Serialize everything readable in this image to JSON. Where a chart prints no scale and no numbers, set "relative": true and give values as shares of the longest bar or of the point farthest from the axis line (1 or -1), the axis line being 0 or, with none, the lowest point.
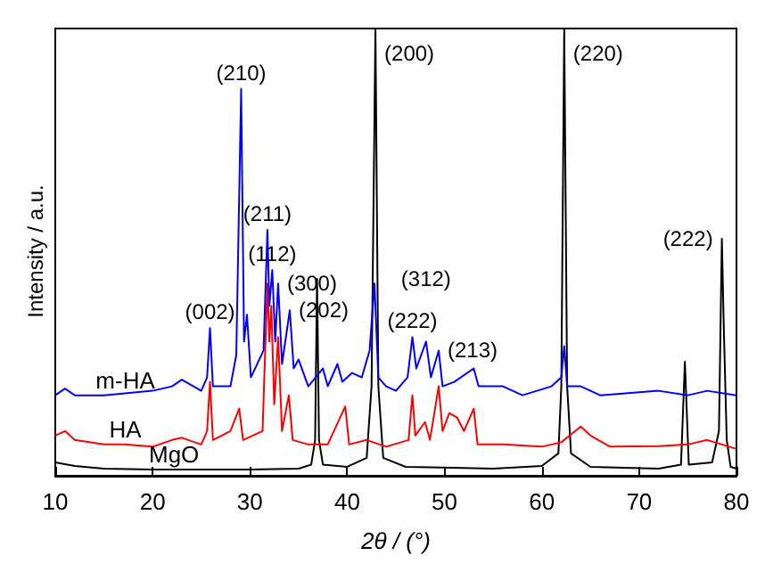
{
  "chart_data": {
    "type": "line",
    "relative": true,
    "xlabel": "2θ / (°)",
    "ylabel": "Intensity / a.u.",
    "xlim": [
      10,
      80
    ],
    "xticks": [
      10,
      20,
      30,
      40,
      50,
      60,
      70,
      80
    ],
    "grid": false,
    "legend": false,
    "marker": "none",
    "line_style": "solid",
    "series": [
      {
        "name": "MgO",
        "color": "#000000",
        "x": [
          10,
          12,
          15,
          20,
          30,
          35,
          36.3,
          36.7,
          36.9,
          37.1,
          37.5,
          40,
          42,
          42.5,
          42.9,
          43.2,
          43.7,
          46,
          55,
          60,
          61.7,
          62,
          62.3,
          62.6,
          63,
          65,
          72,
          74.3,
          74.7,
          75.1,
          77.5,
          78.2,
          78.5,
          78.7,
          79,
          79.4,
          80
        ],
        "values": [
          0.03,
          0.022,
          0.016,
          0.014,
          0.014,
          0.016,
          0.025,
          0.08,
          0.44,
          0.08,
          0.025,
          0.02,
          0.04,
          0.2,
          1,
          0.2,
          0.04,
          0.02,
          0.016,
          0.022,
          0.05,
          0.2,
          1,
          0.2,
          0.05,
          0.02,
          0.016,
          0.025,
          0.255,
          0.025,
          0.03,
          0.1,
          0.53,
          0.33,
          0.08,
          0.02,
          0.016
        ]
      },
      {
        "name": "HA",
        "color": "#ff0000",
        "x": [
          10,
          11,
          12,
          15,
          17,
          20,
          22,
          23,
          25,
          25.6,
          25.9,
          26.2,
          28,
          28.9,
          29.3,
          31.3,
          31.8,
          32,
          32.2,
          32.5,
          32.9,
          33.3,
          34,
          34.4,
          36,
          38,
          39.8,
          40.2,
          42,
          44,
          46.3,
          46.7,
          47,
          48,
          48.5,
          49.4,
          49.8,
          50.5,
          51.3,
          52,
          53,
          53.4,
          56,
          60,
          62,
          64,
          65,
          67,
          72,
          75,
          77,
          80
        ],
        "values": [
          0.09,
          0.1,
          0.08,
          0.07,
          0.07,
          0.065,
          0.08,
          0.085,
          0.07,
          0.1,
          0.21,
          0.08,
          0.1,
          0.15,
          0.08,
          0.1,
          0.43,
          0.3,
          0.38,
          0.16,
          0.31,
          0.1,
          0.18,
          0.08,
          0.07,
          0.07,
          0.155,
          0.07,
          0.08,
          0.065,
          0.08,
          0.18,
          0.09,
          0.12,
          0.08,
          0.2,
          0.1,
          0.14,
          0.13,
          0.1,
          0.15,
          0.07,
          0.07,
          0.065,
          0.075,
          0.11,
          0.09,
          0.065,
          0.066,
          0.07,
          0.08,
          0.06
        ]
      },
      {
        "name": "m-HA",
        "color": "#0000ff",
        "x": [
          10,
          11,
          12,
          15,
          20,
          22,
          23,
          25,
          25.6,
          25.9,
          26.2,
          28,
          28.6,
          29.1,
          29.4,
          29.7,
          30.1,
          31.4,
          31.8,
          32,
          32.3,
          32.6,
          32.9,
          33.3,
          34.1,
          34.5,
          35,
          36,
          37.5,
          38,
          39,
          39.5,
          40.5,
          41.5,
          42.3,
          42.8,
          43.2,
          44,
          45,
          46.2,
          46.7,
          47.1,
          48.1,
          48.6,
          49.4,
          49.8,
          51,
          53,
          53.5,
          56,
          58,
          61,
          62,
          62.3,
          62.6,
          64,
          66,
          72,
          75,
          77,
          80
        ],
        "values": [
          0.18,
          0.195,
          0.18,
          0.18,
          0.19,
          0.2,
          0.215,
          0.19,
          0.22,
          0.33,
          0.2,
          0.2,
          0.27,
          0.865,
          0.3,
          0.36,
          0.22,
          0.28,
          0.55,
          0.38,
          0.46,
          0.3,
          0.43,
          0.25,
          0.37,
          0.24,
          0.26,
          0.2,
          0.24,
          0.2,
          0.25,
          0.21,
          0.23,
          0.22,
          0.28,
          0.43,
          0.22,
          0.2,
          0.19,
          0.22,
          0.31,
          0.24,
          0.3,
          0.22,
          0.28,
          0.2,
          0.21,
          0.24,
          0.2,
          0.2,
          0.18,
          0.2,
          0.22,
          0.29,
          0.2,
          0.2,
          0.18,
          0.19,
          0.18,
          0.19,
          0.18
        ]
      }
    ],
    "annotations": [
      {
        "text": "(210)",
        "x": 29.1,
        "y": 0.865
      },
      {
        "text": "(200)",
        "x": 42.9,
        "y": 1
      },
      {
        "text": "(220)",
        "x": 62.3,
        "y": 1
      },
      {
        "text": "(222)",
        "x": 78.5,
        "y": 0.53
      },
      {
        "text": "(211)",
        "x": 31.8,
        "y": 0.55
      },
      {
        "text": "(112)",
        "x": 32.3,
        "y": 0.46
      },
      {
        "text": "(300)",
        "x": 32.9,
        "y": 0.43
      },
      {
        "text": "(202)",
        "x": 34.1,
        "y": 0.37
      },
      {
        "text": "(002)",
        "x": 25.9,
        "y": 0.33
      },
      {
        "text": "(222)",
        "x": 46.7,
        "y": 0.31
      },
      {
        "text": "(213)",
        "x": 49.4,
        "y": 0.28
      },
      {
        "text": "(312)",
        "x": 48.1,
        "y": 0.3
      }
    ]
  }
}
